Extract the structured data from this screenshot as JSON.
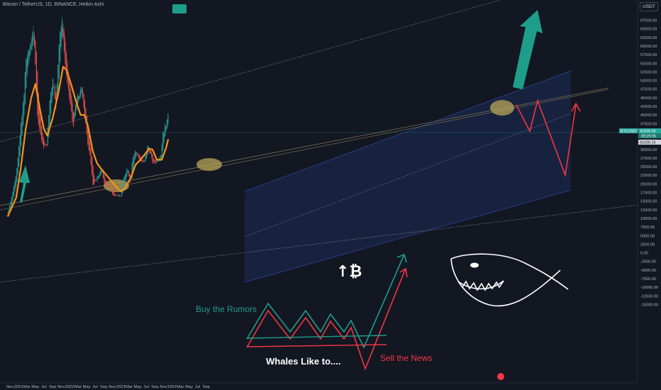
{
  "header": {
    "title": "Bitcoin / TetherUS, 1D, BINANCE, Heikin Ashi",
    "currency_button": "USDT"
  },
  "colors": {
    "background": "#131722",
    "up": "#26a69a",
    "down": "#ef5350",
    "ema": "#f7931a",
    "annotation_teal": "#1e9e8a",
    "annotation_red": "#f23645"
  },
  "chart_data": {
    "type": "candlestick",
    "title": "Bitcoin / TetherUS, 1D, BINANCE, Heikin Ashi",
    "ylim": [
      -15000,
      70000
    ],
    "y_ticks": [
      67500,
      65000,
      62500,
      60000,
      57500,
      55000,
      52500,
      50000,
      47500,
      45000,
      42500,
      40000,
      37500,
      35000,
      32500,
      30000,
      27500,
      25000,
      22500,
      20000,
      17500,
      15000,
      12500,
      10000,
      7500,
      5000,
      2500,
      0,
      -2500,
      -5000,
      -7500,
      -10000,
      -12500,
      -15000
    ],
    "x_ticks": [
      "Nov",
      "2021",
      "Mar",
      "May",
      "Jul",
      "Sep",
      "Nov",
      "2022",
      "Mar",
      "May",
      "Jul",
      "Sep",
      "Nov",
      "2023",
      "Mar",
      "May",
      "Jul",
      "Sep",
      "Nov",
      "2024",
      "Mar",
      "May",
      "Jul",
      "Sep"
    ],
    "price_series": {
      "name": "BTCUSDT",
      "x": [
        "2020-10-15",
        "2020-11-15",
        "2020-12-15",
        "2021-01-01",
        "2021-01-15",
        "2021-02-10",
        "2021-02-21",
        "2021-03-15",
        "2021-04-14",
        "2021-05-01",
        "2021-05-15",
        "2021-06-01",
        "2021-06-22",
        "2021-07-20",
        "2021-08-15",
        "2021-09-06",
        "2021-09-25",
        "2021-10-20",
        "2021-11-10",
        "2021-11-25",
        "2021-12-15",
        "2022-01-10",
        "2022-01-25",
        "2022-02-15",
        "2022-03-28",
        "2022-04-25",
        "2022-05-10",
        "2022-05-25",
        "2022-06-18",
        "2022-07-10",
        "2022-08-15",
        "2022-09-10",
        "2022-10-15",
        "2022-11-09",
        "2022-11-30",
        "2022-12-30",
        "2023-01-20",
        "2023-02-15",
        "2023-03-10",
        "2023-03-25",
        "2023-04-14",
        "2023-05-15",
        "2023-06-15",
        "2023-07-13",
        "2023-08-18",
        "2023-09-15",
        "2023-10-15",
        "2023-10-26",
        "2023-11-15",
        "2023-12-01",
        "2023-12-05"
      ],
      "y": [
        11500,
        16500,
        23000,
        29000,
        36000,
        46000,
        56000,
        58000,
        64500,
        56000,
        40000,
        36000,
        31000,
        31000,
        46000,
        51000,
        42000,
        64000,
        67000,
        57000,
        49000,
        42000,
        36500,
        44000,
        47500,
        38000,
        31000,
        29000,
        19000,
        21500,
        24000,
        19800,
        19200,
        16500,
        16800,
        16600,
        21000,
        24500,
        20000,
        27500,
        30000,
        27000,
        26000,
        31300,
        26000,
        26700,
        28700,
        34500,
        37000,
        38500,
        41500
      ]
    },
    "ema_series": {
      "x": [
        "2020-10-15",
        "2020-12-15",
        "2021-01-15",
        "2021-02-21",
        "2021-04-01",
        "2021-05-01",
        "2021-06-01",
        "2021-07-01",
        "2021-07-25",
        "2021-09-01",
        "2021-10-15",
        "2021-11-15",
        "2021-12-10",
        "2022-01-10",
        "2022-02-15",
        "2022-03-20",
        "2022-04-15",
        "2022-05-10",
        "2022-06-15",
        "2022-07-15",
        "2022-08-15",
        "2022-10-01",
        "2022-11-15",
        "2022-12-30",
        "2023-02-01",
        "2023-03-15",
        "2023-04-15",
        "2023-05-20",
        "2023-06-20",
        "2023-07-20",
        "2023-08-15",
        "2023-09-15",
        "2023-10-20",
        "2023-11-20",
        "2023-12-05"
      ],
      "y": [
        10500,
        16000,
        24000,
        36000,
        45000,
        49000,
        42000,
        36000,
        34000,
        39000,
        47000,
        54000,
        53000,
        49000,
        44000,
        40000,
        40000,
        37000,
        29500,
        26000,
        24300,
        22000,
        19800,
        17800,
        18800,
        22000,
        25500,
        27000,
        28500,
        30200,
        30000,
        27000,
        27000,
        30500,
        33000
      ]
    },
    "last_price": "41509.26",
    "price_labels": [
      "BTCUSDT",
      "41509.26",
      "09:29:05",
      "41026.16"
    ],
    "annotations": {
      "buy_text": "Buy the Rumors",
      "sell_text": "Sell the News",
      "whales_text": "Whales Like to....",
      "bitcoin_symbol": "↑₿"
    }
  }
}
